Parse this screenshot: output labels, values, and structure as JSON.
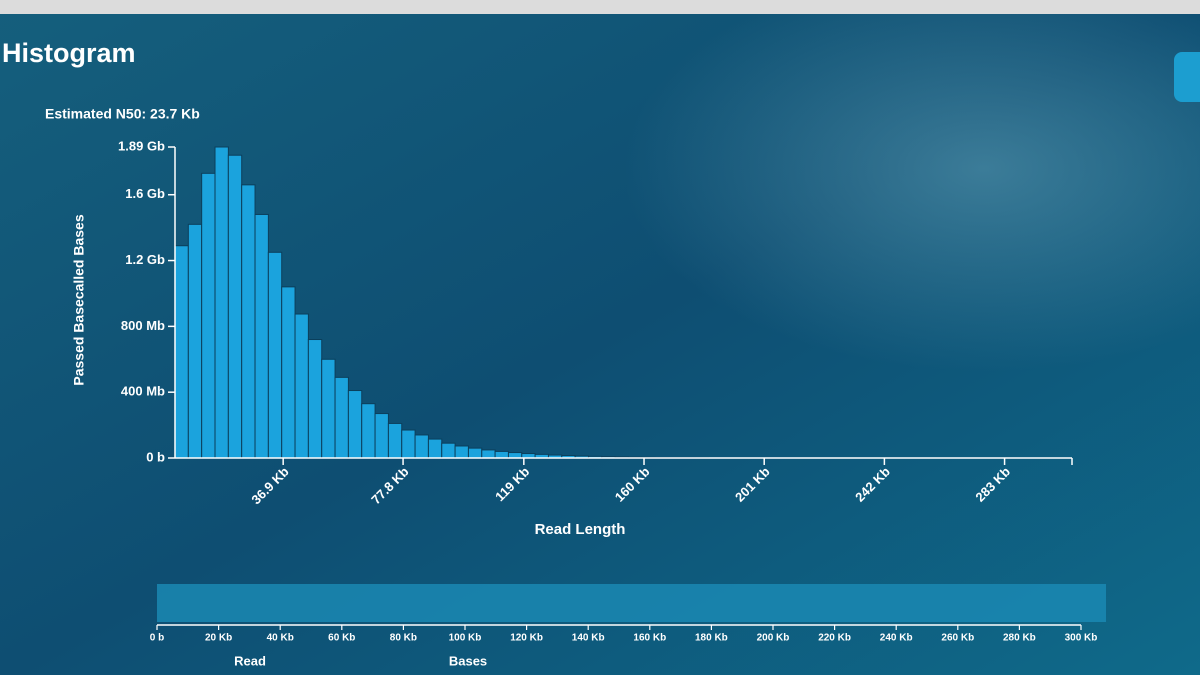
{
  "chart_data": [
    {
      "type": "histogram",
      "title": "Histogram",
      "subtitle": "Estimated N50: 23.7 Kb",
      "x_label": "Read Length",
      "y_label": "Passed Basecalled Bases",
      "color": "#1ba3dd",
      "bins": [
        0,
        4550,
        9100,
        13650,
        18200,
        22750,
        27300,
        31850,
        36400,
        40950,
        45500,
        50050,
        54600,
        59150,
        63700,
        68250,
        72800,
        77350,
        81900,
        86450,
        91000,
        95550,
        100100,
        104650,
        109200,
        113750,
        118300,
        122850,
        127400,
        131950,
        136500,
        141050,
        145600,
        150150,
        154700,
        159250,
        163800,
        168350,
        172900,
        177450,
        182000
      ],
      "counts": [
        1290000000,
        1420000000,
        1730000000,
        1890000000,
        1840000000,
        1660000000,
        1480000000,
        1250000000,
        1040000000,
        875000000,
        720000000,
        600000000,
        490000000,
        410000000,
        330000000,
        270000000,
        210000000,
        170000000,
        140000000,
        115000000,
        90000000,
        73000000,
        60000000,
        49000000,
        40000000,
        33000000,
        27000000,
        22000000,
        18000000,
        15000000,
        12000000,
        10000000,
        8000000,
        6500000,
        5000000,
        4000000,
        3000000,
        2500000,
        2000000,
        1500000
      ],
      "xlim": [
        0,
        306000
      ],
      "xticks": [
        {
          "value": 36900,
          "label": "36.9 Kb"
        },
        {
          "value": 77800,
          "label": "77.8 Kb"
        },
        {
          "value": 119000,
          "label": "119 Kb"
        },
        {
          "value": 160000,
          "label": "160 Kb"
        },
        {
          "value": 201000,
          "label": "201 Kb"
        },
        {
          "value": 242000,
          "label": "242 Kb"
        },
        {
          "value": 283000,
          "label": "283 Kb"
        }
      ],
      "ylim": [
        0,
        1890000000
      ],
      "yticks": [
        {
          "value": 0,
          "label": "0 b"
        },
        {
          "value": 400000000,
          "label": "400 Mb"
        },
        {
          "value": 800000000,
          "label": "800 Mb"
        },
        {
          "value": 1200000000,
          "label": "1.2 Gb"
        },
        {
          "value": 1600000000,
          "label": "1.6 Gb"
        },
        {
          "value": 1890000000,
          "label": "1.89 Gb"
        }
      ]
    },
    {
      "type": "range-selector",
      "xlim": [
        0,
        300000
      ],
      "xticks": [
        {
          "value": 0,
          "label": "0 b"
        },
        {
          "value": 20000,
          "label": "20 Kb"
        },
        {
          "value": 40000,
          "label": "40 Kb"
        },
        {
          "value": 60000,
          "label": "60 Kb"
        },
        {
          "value": 80000,
          "label": "80 Kb"
        },
        {
          "value": 100000,
          "label": "100 Kb"
        },
        {
          "value": 120000,
          "label": "120 Kb"
        },
        {
          "value": 140000,
          "label": "140 Kb"
        },
        {
          "value": 160000,
          "label": "160 Kb"
        },
        {
          "value": 180000,
          "label": "180 Kb"
        },
        {
          "value": 200000,
          "label": "200 Kb"
        },
        {
          "value": 220000,
          "label": "220 Kb"
        },
        {
          "value": 240000,
          "label": "240 Kb"
        },
        {
          "value": 260000,
          "label": "260 Kb"
        },
        {
          "value": 280000,
          "label": "280 Kb"
        },
        {
          "value": 300000,
          "label": "300 Kb"
        }
      ],
      "toggles": [
        "Read",
        "Bases"
      ]
    }
  ]
}
